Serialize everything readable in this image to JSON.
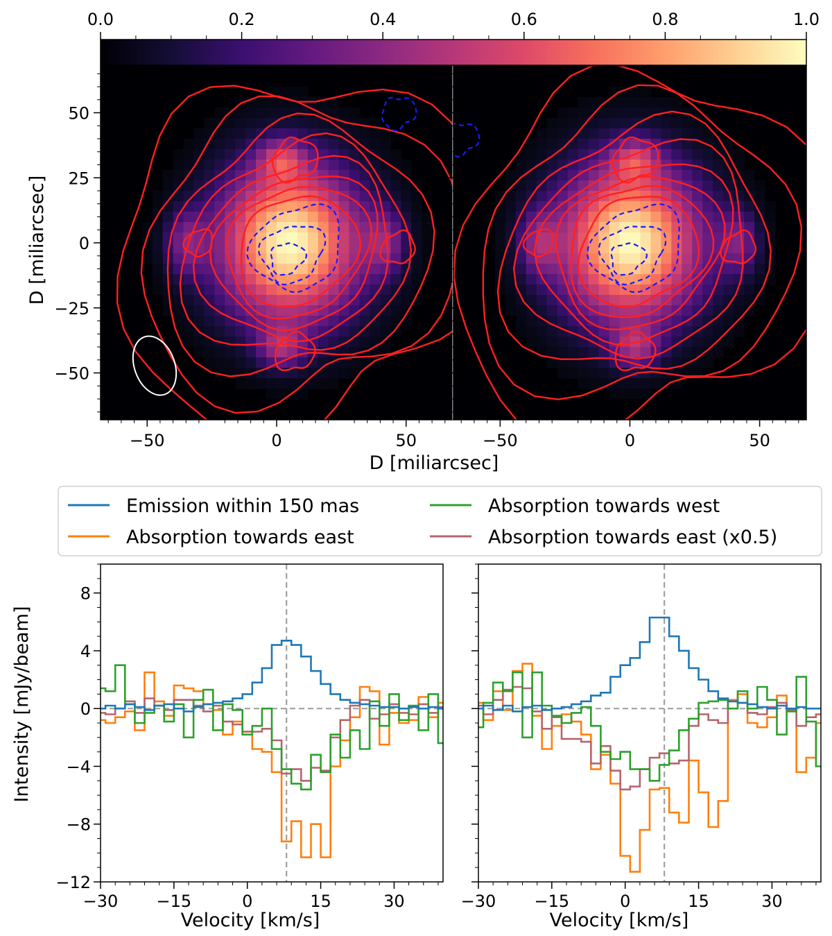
{
  "colors": {
    "emission": "#1f77b4",
    "east": "#ff7f0e",
    "west": "#2ca02c",
    "east_half": "#b5646b",
    "contour_pos": "#ff2020",
    "contour_neg": "#1a1aff",
    "ref_line": "#a0a0a0",
    "beam": "#ffffff"
  },
  "chart_data": [
    {
      "type": "colorbar",
      "colormap": "magma",
      "range": [
        0.0,
        1.0
      ],
      "ticks": [
        "0.0",
        "0.2",
        "0.4",
        "0.6",
        "0.8",
        "1.0"
      ]
    },
    {
      "type": "heatmap",
      "panel": "left",
      "xlabel": "D [miliarcsec]",
      "ylabel": "D [miliarcsec]",
      "xlim": [
        -68,
        68
      ],
      "ylim": [
        -68,
        68
      ],
      "xticks": [
        "−50",
        "0",
        "50"
      ],
      "yticks": [
        "50",
        "25",
        "0",
        "−25",
        "−50"
      ],
      "emission_peak": {
        "x": 5,
        "y": 0,
        "sigma_x": 19,
        "sigma_y": 21,
        "peak": 1.0
      },
      "beam": {
        "x": -50,
        "y": -50,
        "major": 25,
        "minor": 17,
        "angle": 20
      },
      "positive_contour_levels": 8,
      "negative_contour_levels": 3
    },
    {
      "type": "heatmap",
      "panel": "right",
      "xlabel": "D [miliarcsec]",
      "xlim": [
        -68,
        68
      ],
      "ylim": [
        -68,
        68
      ],
      "xticks": [
        "−50",
        "0",
        "50"
      ],
      "emission_peak": {
        "x": 0,
        "y": 0,
        "sigma_x": 19,
        "sigma_y": 21,
        "peak": 1.0
      },
      "positive_contour_levels": 8,
      "negative_contour_levels": 3
    },
    {
      "type": "line",
      "panel": "left",
      "xlabel": "Velocity [km/s]",
      "ylabel": "Intensity [mJy/beam]",
      "xlim": [
        -30,
        40
      ],
      "ylim": [
        -12,
        10
      ],
      "xticks": [
        "−30",
        "−15",
        "0",
        "15",
        "30"
      ],
      "yticks": [
        "8",
        "4",
        "0",
        "−4",
        "−8",
        "−12"
      ],
      "vline": 8,
      "x": [
        -30,
        -28,
        -26,
        -24,
        -22,
        -20,
        -18,
        -16,
        -14,
        -12,
        -10,
        -8,
        -6,
        -4,
        -2,
        0,
        2,
        4,
        6,
        8,
        10,
        12,
        14,
        16,
        18,
        20,
        22,
        24,
        26,
        28,
        30,
        32,
        34,
        36,
        38,
        40
      ],
      "series": [
        {
          "name": "Emission within 150 mas",
          "values": [
            0.0,
            0.2,
            0.0,
            0.3,
            0.1,
            -0.1,
            0.2,
            0.3,
            0.0,
            -0.2,
            0.1,
            0.3,
            0.4,
            0.5,
            0.7,
            1.0,
            1.8,
            2.8,
            4.4,
            4.7,
            4.4,
            3.6,
            2.6,
            1.7,
            1.0,
            0.6,
            0.4,
            0.3,
            0.2,
            0.1,
            0.1,
            0.0,
            0.1,
            0.0,
            0.1,
            0.0
          ]
        },
        {
          "name": "Absorption towards east",
          "values": [
            -0.8,
            -1.0,
            -0.6,
            -0.2,
            -1.5,
            2.5,
            0.5,
            -0.5,
            1.6,
            1.4,
            1.2,
            0.3,
            -0.1,
            -1.8,
            -0.9,
            -1.6,
            -2.8,
            -3.0,
            -4.4,
            -9.2,
            -7.8,
            -10.3,
            -8.0,
            -10.3,
            -4.0,
            -2.2,
            -0.6,
            1.5,
            1.2,
            -2.5,
            -0.3,
            -1.0,
            -0.8,
            0.8,
            -0.6,
            0.4
          ]
        },
        {
          "name": "Absorption towards west",
          "values": [
            1.4,
            1.2,
            3.0,
            0.3,
            -1.0,
            -0.3,
            0.2,
            -0.9,
            0.3,
            -2.0,
            0.6,
            1.3,
            -1.5,
            0.3,
            -0.1,
            -1.8,
            -1.2,
            0.0,
            -2.8,
            -4.2,
            -5.2,
            -5.6,
            -3.2,
            -4.4,
            -1.8,
            -3.4,
            -1.5,
            -2.8,
            0.5,
            -1.2,
            1.0,
            -0.8,
            0.2,
            -1.5,
            1.0,
            -2.4
          ]
        },
        {
          "name": "Absorption towards east (x0.5)",
          "values": [
            -0.3,
            -0.4,
            0.0,
            0.5,
            -0.3,
            0.7,
            0.2,
            -0.1,
            0.6,
            0.6,
            0.2,
            -0.2,
            0.2,
            -0.9,
            -1.1,
            -1.6,
            -1.6,
            -1.4,
            -2.2,
            -4.5,
            -4.2,
            -5.0,
            -4.1,
            -4.3,
            -2.0,
            -0.8,
            0.2,
            0.6,
            -0.7,
            -0.4,
            0.3,
            -0.3,
            -0.4,
            0.3,
            -0.3,
            0.1
          ]
        }
      ]
    },
    {
      "type": "line",
      "panel": "right",
      "xlabel": "Velocity [km/s]",
      "xlim": [
        -30,
        40
      ],
      "ylim": [
        -12,
        10
      ],
      "xticks": [
        "−30",
        "−15",
        "0",
        "15",
        "30"
      ],
      "vline": 8,
      "x": [
        -30,
        -28,
        -26,
        -24,
        -22,
        -20,
        -18,
        -16,
        -14,
        -12,
        -10,
        -8,
        -6,
        -4,
        -2,
        0,
        2,
        4,
        6,
        8,
        10,
        12,
        14,
        16,
        18,
        20,
        22,
        24,
        26,
        28,
        30,
        32,
        34,
        36,
        38,
        40
      ],
      "series": [
        {
          "name": "Emission within 150 mas",
          "values": [
            0.0,
            0.2,
            -0.1,
            0.2,
            -0.2,
            0.1,
            0.2,
            -0.1,
            0.0,
            0.1,
            0.3,
            0.5,
            0.9,
            1.1,
            2.2,
            3.0,
            3.5,
            4.6,
            6.3,
            6.3,
            5.0,
            4.0,
            2.8,
            2.0,
            1.2,
            0.7,
            0.5,
            0.4,
            0.3,
            0.1,
            0.0,
            0.2,
            0.0,
            0.1,
            0.0,
            0.0
          ]
        },
        {
          "name": "Absorption towards east",
          "values": [
            0.4,
            -0.8,
            1.2,
            -0.1,
            2.6,
            3.1,
            -0.5,
            -2.8,
            -1.2,
            -0.4,
            -0.9,
            -1.8,
            -4.2,
            -3.2,
            -5.2,
            -10.2,
            -11.3,
            -8.4,
            -5.6,
            -5.5,
            -7.2,
            -7.9,
            -3.6,
            -5.8,
            -8.2,
            -6.4,
            0.6,
            1.0,
            -1.0,
            -1.3,
            -0.6,
            0.9,
            -0.2,
            -4.4,
            -3.4,
            -1.0
          ]
        },
        {
          "name": "Absorption towards west",
          "values": [
            -1.3,
            0.4,
            1.8,
            1.2,
            2.5,
            -2.0,
            2.5,
            0.2,
            -0.5,
            -1.0,
            -0.3,
            0.1,
            -1.2,
            -3.0,
            -3.5,
            -3.0,
            -4.2,
            -4.2,
            -5.0,
            -3.9,
            -2.9,
            -1.5,
            -0.7,
            0.4,
            0.5,
            0.6,
            0.0,
            1.2,
            0.0,
            1.5,
            0.6,
            -1.8,
            -0.2,
            2.2,
            -0.9,
            -4.0
          ]
        },
        {
          "name": "Absorption towards east (x0.5)",
          "values": [
            0.2,
            -0.4,
            0.6,
            1.3,
            1.5,
            1.4,
            -0.2,
            -1.4,
            -0.6,
            -2.1,
            -2.1,
            -2.3,
            -3.8,
            -2.6,
            -4.3,
            -5.6,
            -5.4,
            -4.2,
            -3.4,
            -3.1,
            -3.8,
            -3.6,
            -1.2,
            -0.4,
            -0.8,
            -1.0,
            0.5,
            0.4,
            -0.3,
            -0.4,
            0.1,
            0.4,
            -0.1,
            -1.2,
            -0.6,
            -0.4
          ]
        }
      ]
    }
  ],
  "legend": {
    "items": [
      "Emission within 150 mas",
      "Absorption towards east",
      "Absorption towards west",
      "Absorption towards east (x0.5)"
    ]
  }
}
